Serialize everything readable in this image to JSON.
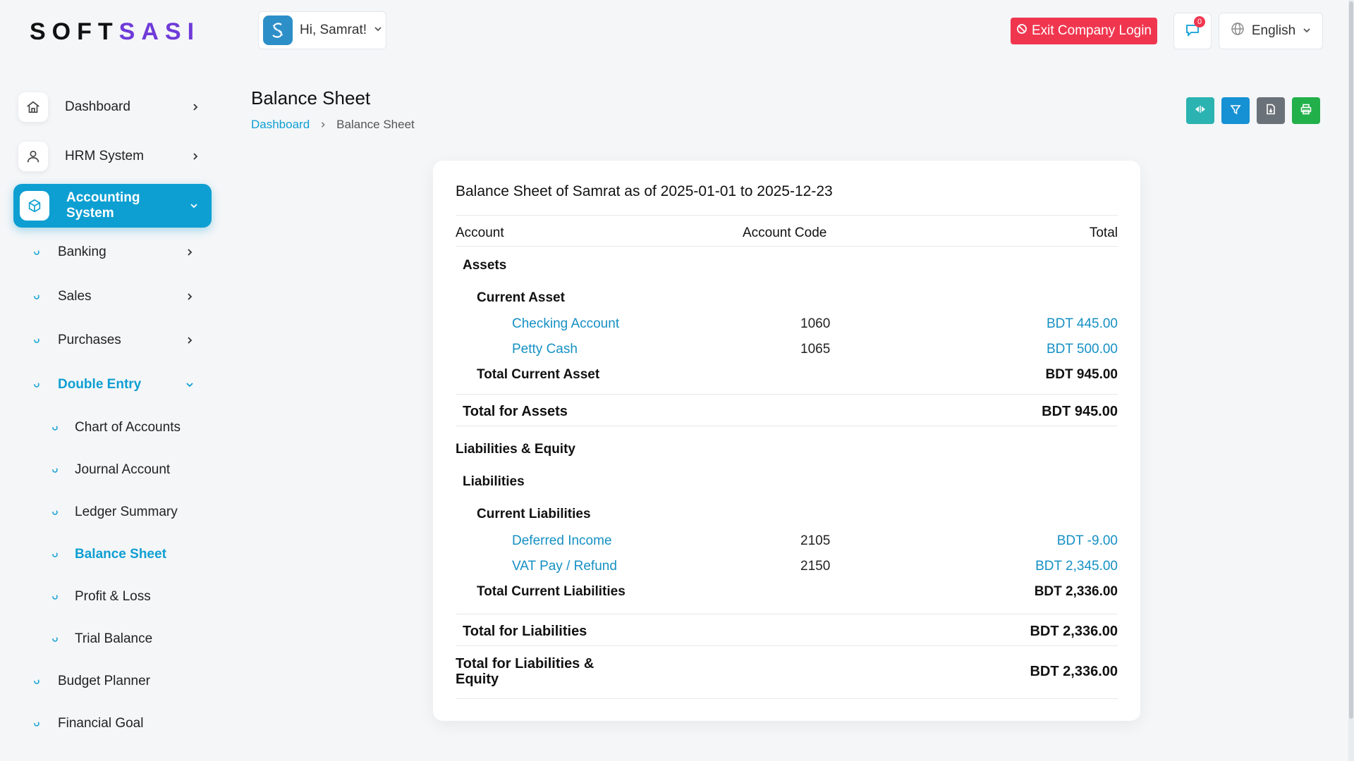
{
  "brand": {
    "part1": "SOFT",
    "part2": "SASI"
  },
  "header": {
    "greeting": "Hi, Samrat!",
    "exit_label": "Exit Company Login",
    "notification_count": "0",
    "language": "English"
  },
  "sidebar": {
    "dashboard": "Dashboard",
    "hrm": "HRM System",
    "accounting": "Accounting System",
    "banking": "Banking",
    "sales": "Sales",
    "purchases": "Purchases",
    "double_entry": "Double Entry",
    "chart_of_accounts": "Chart of Accounts",
    "journal_account": "Journal Account",
    "ledger_summary": "Ledger Summary",
    "balance_sheet": "Balance Sheet",
    "profit_loss": "Profit & Loss",
    "trial_balance": "Trial Balance",
    "budget_planner": "Budget Planner",
    "financial_goal": "Financial Goal"
  },
  "page": {
    "title": "Balance Sheet",
    "breadcrumb_home": "Dashboard",
    "breadcrumb_current": "Balance Sheet"
  },
  "report": {
    "title": "Balance Sheet of Samrat as of 2025-01-01 to 2025-12-23",
    "col_account": "Account",
    "col_code": "Account Code",
    "col_total": "Total",
    "assets": "Assets",
    "current_asset": "Current Asset",
    "checking_name": "Checking Account",
    "checking_code": "1060",
    "checking_total": "BDT 445.00",
    "petty_name": "Petty Cash",
    "petty_code": "1065",
    "petty_total": "BDT 500.00",
    "total_current_asset_label": "Total Current Asset",
    "total_current_asset": "BDT 945.00",
    "total_assets_label": "Total for Assets",
    "total_assets": "BDT 945.00",
    "liab_equity": "Liabilities & Equity",
    "liabilities": "Liabilities",
    "current_liabilities": "Current Liabilities",
    "deferred_name": "Deferred Income",
    "deferred_code": "2105",
    "deferred_total": "BDT -9.00",
    "vat_name": "VAT Pay / Refund",
    "vat_code": "2150",
    "vat_total": "BDT 2,345.00",
    "total_current_liab_label": "Total Current Liabilities",
    "total_current_liab": "BDT 2,336.00",
    "total_liab_label": "Total for Liabilities",
    "total_liab": "BDT 2,336.00",
    "total_liab_equity_label_1": "Total for Liabilities &",
    "total_liab_equity_label_2": "Equity",
    "total_liab_equity": "BDT 2,336.00"
  },
  "colors": {
    "accent": "#0e9fd2",
    "danger": "#f0364f",
    "brand_purple": "#6f3bd8",
    "tool_teal": "#2bb3b1",
    "tool_blue": "#1691d4",
    "tool_gray": "#6b7178",
    "tool_green": "#22b04b"
  }
}
